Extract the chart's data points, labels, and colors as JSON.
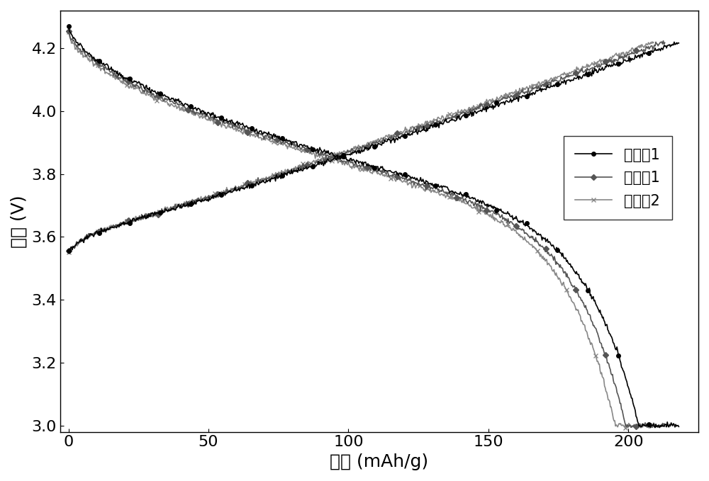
{
  "title": "",
  "xlabel": "容量 (mAh/g)",
  "ylabel": "电压 (V)",
  "xlim": [
    -3,
    225
  ],
  "ylim": [
    2.98,
    4.32
  ],
  "xticks": [
    0,
    50,
    100,
    150,
    200
  ],
  "yticks": [
    3.0,
    3.2,
    3.4,
    3.6,
    3.8,
    4.0,
    4.2
  ],
  "legend_labels": [
    "实施例1",
    "对比例1",
    "对比例2"
  ],
  "line_color": "#000000",
  "line_color2": "#555555",
  "line_color3": "#888888",
  "bg_color": "#ffffff",
  "num_points": 800,
  "font_size_label": 18,
  "font_size_tick": 16,
  "font_size_legend": 15,
  "line_width": 1.2,
  "marker_size": 4
}
